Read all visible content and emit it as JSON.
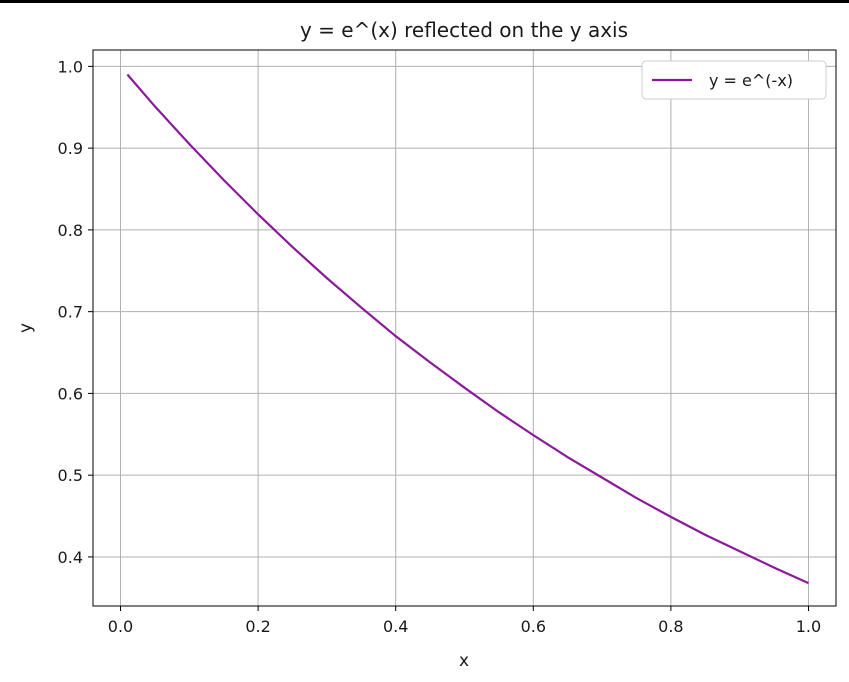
{
  "chart_data": {
    "type": "line",
    "title": "y = e^(x) reflected on the y axis",
    "xlabel": "x",
    "ylabel": "y",
    "xlim": [
      -0.04,
      1.04
    ],
    "ylim": [
      0.34,
      1.02
    ],
    "xticks": [
      0.0,
      0.2,
      0.4,
      0.6,
      0.8,
      1.0
    ],
    "xtick_labels": [
      "0.0",
      "0.2",
      "0.4",
      "0.6",
      "0.8",
      "1.0"
    ],
    "yticks": [
      0.4,
      0.5,
      0.6,
      0.7,
      0.8,
      0.9,
      1.0
    ],
    "ytick_labels": [
      "0.4",
      "0.5",
      "0.6",
      "0.7",
      "0.8",
      "0.9",
      "1.0"
    ],
    "grid": true,
    "legend_position": "top-right",
    "series": [
      {
        "name": "y = e^(-x)",
        "color": "#8b1a9a",
        "x": [
          0.01,
          0.05,
          0.1,
          0.15,
          0.2,
          0.25,
          0.3,
          0.35,
          0.4,
          0.45,
          0.5,
          0.55,
          0.6,
          0.65,
          0.7,
          0.75,
          0.8,
          0.85,
          0.9,
          0.95,
          1.0
        ],
        "y": [
          0.99,
          0.951,
          0.905,
          0.861,
          0.819,
          0.779,
          0.741,
          0.705,
          0.67,
          0.638,
          0.607,
          0.577,
          0.549,
          0.522,
          0.497,
          0.472,
          0.449,
          0.427,
          0.407,
          0.387,
          0.368
        ]
      }
    ]
  }
}
